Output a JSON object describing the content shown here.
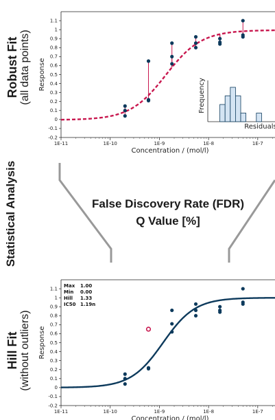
{
  "labels": {
    "robust_title": "Robust Fit",
    "robust_sub": "(all data points)",
    "stat_title": "Statistical Analysis",
    "hill_title": "Hill Fit",
    "hill_sub": "(without outliers)",
    "fdr_line1": "False Discovery Rate (FDR)",
    "fdr_line2": "Q Value [%]"
  },
  "colors": {
    "robust_curve": "#c8174e",
    "hill_curve": "#0d3a5c",
    "points": "#0d3a5c",
    "outlier": "#c8174e",
    "residual_line": "#c8174e",
    "histogram_fill": "#d4e4f3",
    "histogram_edge": "#0d3a5c",
    "funnel": "#999999"
  },
  "chart_data": [
    {
      "type": "scatter",
      "name": "robust-fit",
      "xlabel": "Concentration / (mol/l)",
      "ylabel": "Response",
      "x_scale": "log",
      "xlim": [
        1e-11,
        4e-07
      ],
      "ylim": [
        -0.2,
        1.2
      ],
      "x_ticks": [
        {
          "v": 1e-11,
          "label": "1E-11"
        },
        {
          "v": 1e-10,
          "label": "1E-10"
        },
        {
          "v": 1e-09,
          "label": "1E-9"
        },
        {
          "v": 1e-08,
          "label": "1E-8"
        },
        {
          "v": 1e-07,
          "label": "1E-7"
        }
      ],
      "y_ticks": [
        -0.2,
        -0.1,
        0,
        0.1,
        0.2,
        0.3,
        0.4,
        0.5,
        0.6,
        0.7,
        0.8,
        0.9,
        1,
        1.1
      ],
      "points": [
        {
          "x": 2e-10,
          "y": 0.15
        },
        {
          "x": 2e-10,
          "y": 0.1
        },
        {
          "x": 2e-10,
          "y": 0.04
        },
        {
          "x": 6e-10,
          "y": 0.65
        },
        {
          "x": 6e-10,
          "y": 0.22
        },
        {
          "x": 6e-10,
          "y": 0.21
        },
        {
          "x": 1.8e-09,
          "y": 0.85
        },
        {
          "x": 1.8e-09,
          "y": 0.7
        },
        {
          "x": 1.8e-09,
          "y": 0.62
        },
        {
          "x": 5.5e-09,
          "y": 0.92
        },
        {
          "x": 5.5e-09,
          "y": 0.85
        },
        {
          "x": 5.5e-09,
          "y": 0.8
        },
        {
          "x": 1.7e-08,
          "y": 0.9
        },
        {
          "x": 1.7e-08,
          "y": 0.86
        },
        {
          "x": 1.7e-08,
          "y": 0.84
        },
        {
          "x": 5e-08,
          "y": 1.1
        },
        {
          "x": 5e-08,
          "y": 0.94
        },
        {
          "x": 5e-08,
          "y": 0.92
        }
      ],
      "fit": {
        "max": 0.995,
        "min": -0.005,
        "hill": 1.2,
        "ic50": 1.35e-09,
        "style": "dashed"
      },
      "inset": {
        "type": "bar",
        "xlabel": "Residuals",
        "ylabel": "Frequency",
        "values": [
          0,
          2,
          3,
          4,
          3,
          1,
          0,
          0,
          1,
          0
        ]
      }
    },
    {
      "type": "scatter",
      "name": "hill-fit",
      "xlabel": "Concentration / (mol/l)",
      "ylabel": "Response",
      "x_scale": "log",
      "xlim": [
        1e-11,
        4e-07
      ],
      "ylim": [
        -0.2,
        1.2
      ],
      "x_ticks": [
        {
          "v": 1e-11,
          "label": "1E-11"
        },
        {
          "v": 1e-10,
          "label": "1E-10"
        },
        {
          "v": 1e-09,
          "label": "1E-9"
        },
        {
          "v": 1e-08,
          "label": "1E-8"
        },
        {
          "v": 1e-07,
          "label": "1E-7"
        }
      ],
      "y_ticks": [
        -0.2,
        -0.1,
        0,
        0.1,
        0.2,
        0.3,
        0.4,
        0.5,
        0.6,
        0.7,
        0.8,
        0.9,
        1,
        1.1
      ],
      "points": [
        {
          "x": 2e-10,
          "y": 0.15
        },
        {
          "x": 2e-10,
          "y": 0.1
        },
        {
          "x": 2e-10,
          "y": 0.04
        },
        {
          "x": 6e-10,
          "y": 0.22
        },
        {
          "x": 6e-10,
          "y": 0.21
        },
        {
          "x": 1.8e-09,
          "y": 0.86
        },
        {
          "x": 1.8e-09,
          "y": 0.71
        },
        {
          "x": 1.8e-09,
          "y": 0.62
        },
        {
          "x": 5.5e-09,
          "y": 0.93
        },
        {
          "x": 5.5e-09,
          "y": 0.86
        },
        {
          "x": 5.5e-09,
          "y": 0.8
        },
        {
          "x": 1.7e-08,
          "y": 0.9
        },
        {
          "x": 1.7e-08,
          "y": 0.86
        },
        {
          "x": 1.7e-08,
          "y": 0.84
        },
        {
          "x": 5e-08,
          "y": 1.1
        },
        {
          "x": 5e-08,
          "y": 0.95
        },
        {
          "x": 5e-08,
          "y": 0.93
        }
      ],
      "outliers": [
        {
          "x": 6e-10,
          "y": 0.65
        }
      ],
      "fit": {
        "max": 1.0,
        "min": 0.0,
        "hill": 1.33,
        "ic50": 1.19e-09,
        "style": "solid"
      },
      "stats": [
        {
          "label": "Max",
          "value": "1.00"
        },
        {
          "label": "Min",
          "value": "0.00"
        },
        {
          "label": "Hill",
          "value": "1.33"
        },
        {
          "label": "IC50",
          "value": "1.19n"
        }
      ]
    }
  ]
}
